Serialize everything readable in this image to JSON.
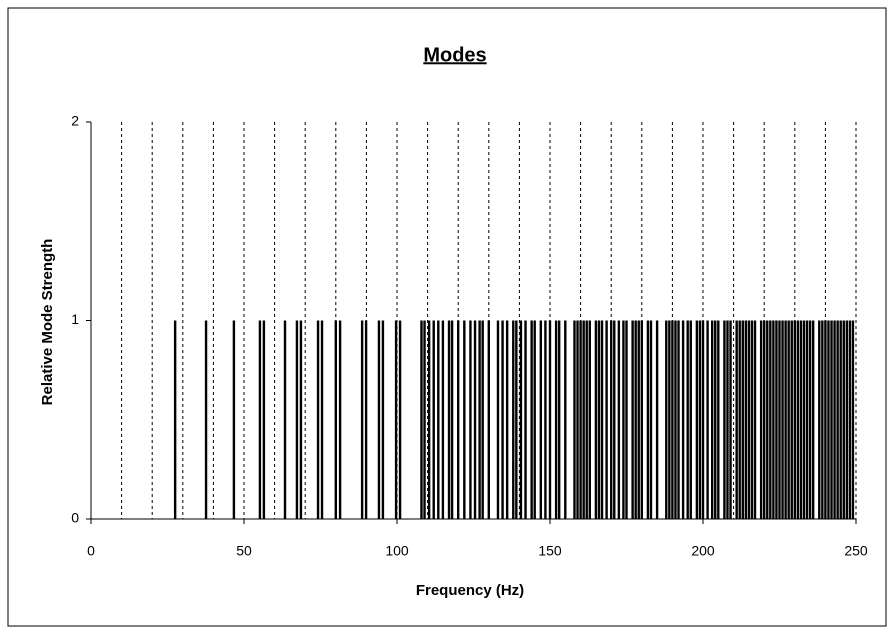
{
  "chart_data": {
    "type": "bar",
    "title": "Modes",
    "x_label": "Frequency (Hz)",
    "y_label": "Relative Mode Strength",
    "color": "#000000",
    "xlim": [
      0,
      250
    ],
    "ylim": [
      0,
      2
    ],
    "xticks": [
      0,
      50,
      100,
      150,
      200,
      250
    ],
    "yticks": [
      0,
      1,
      2
    ],
    "x_minor_ticks": [
      10,
      20,
      30,
      40,
      50,
      60,
      70,
      80,
      90,
      100,
      110,
      120,
      130,
      140,
      150,
      160,
      170,
      180,
      190,
      200,
      210,
      220,
      230,
      240,
      250
    ],
    "grid": true,
    "x": [
      27.5,
      37.6,
      46.7,
      55.2,
      56.5,
      63.4,
      67.3,
      68.6,
      74.2,
      75.5,
      80.0,
      81.4,
      88.6,
      89.9,
      94.1,
      95.4,
      99.7,
      101.0,
      108,
      109,
      110.5,
      112,
      113.5,
      115,
      117,
      118,
      120,
      122,
      124,
      125.5,
      127,
      128,
      130,
      133,
      134.5,
      136,
      138,
      139,
      140.5,
      142,
      144,
      145,
      147,
      148.5,
      150,
      152,
      153,
      155,
      158,
      159,
      160,
      161,
      162,
      163,
      165,
      166,
      167,
      168.5,
      170,
      171,
      172.5,
      174,
      175,
      177,
      178,
      179,
      180,
      182,
      183,
      185,
      188,
      189,
      190,
      191,
      192,
      193.5,
      195,
      196,
      198,
      199,
      200,
      201.5,
      203,
      204,
      205,
      207,
      208,
      209,
      211,
      212,
      213,
      214,
      215,
      216,
      217,
      219,
      220,
      221,
      222,
      223,
      224,
      225,
      226,
      227,
      228,
      229,
      230,
      231,
      232,
      233,
      234,
      235,
      236,
      238,
      239,
      240,
      241,
      242,
      243,
      244,
      245,
      246,
      247,
      248,
      249
    ],
    "values": [
      1,
      1,
      1,
      1,
      1,
      1,
      1,
      1,
      1,
      1,
      1,
      1,
      1,
      1,
      1,
      1,
      1,
      1,
      1,
      1,
      1,
      1,
      1,
      1,
      1,
      1,
      1,
      1,
      1,
      1,
      1,
      1,
      1,
      1,
      1,
      1,
      1,
      1,
      1,
      1,
      1,
      1,
      1,
      1,
      1,
      1,
      1,
      1,
      1,
      1,
      1,
      1,
      1,
      1,
      1,
      1,
      1,
      1,
      1,
      1,
      1,
      1,
      1,
      1,
      1,
      1,
      1,
      1,
      1,
      1,
      1,
      1,
      1,
      1,
      1,
      1,
      1,
      1,
      1,
      1,
      1,
      1,
      1,
      1,
      1,
      1,
      1,
      1,
      1,
      1,
      1,
      1,
      1,
      1,
      1,
      1,
      1,
      1,
      1,
      1,
      1,
      1,
      1,
      1,
      1,
      1,
      1,
      1,
      1,
      1,
      1,
      1,
      1,
      1,
      1,
      1,
      1,
      1,
      1,
      1,
      1,
      1,
      1,
      1,
      1
    ]
  }
}
